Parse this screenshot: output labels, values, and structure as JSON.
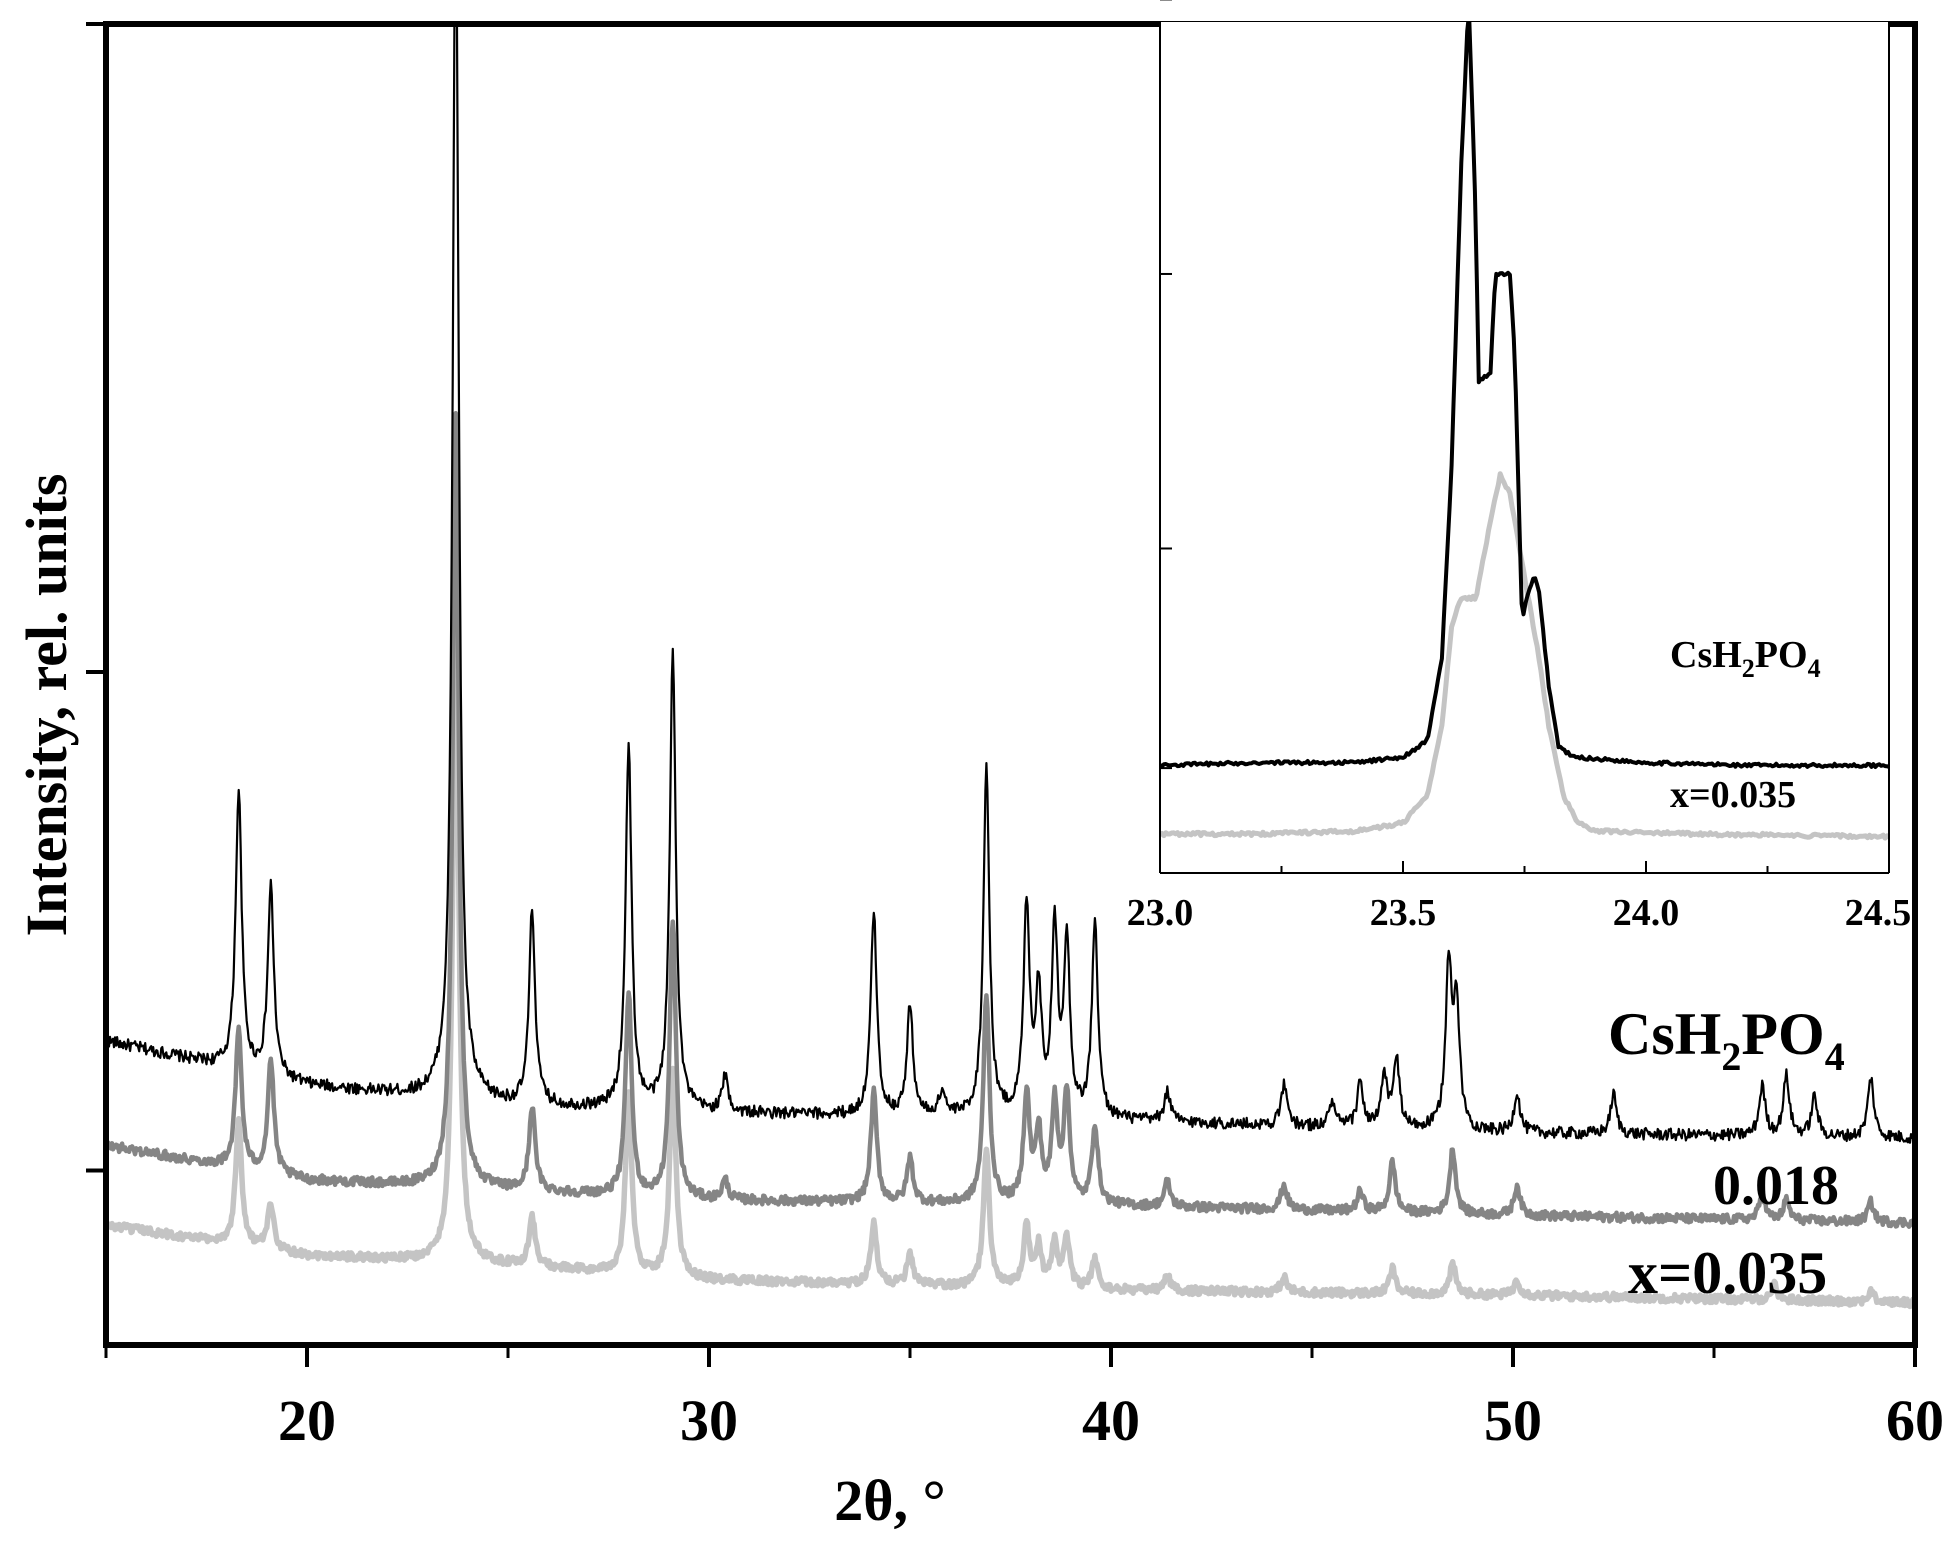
{
  "chart_data": [
    {
      "type": "line",
      "xlabel": "2θ, °",
      "ylabel": "Intensity, rel. units",
      "xlim": [
        15,
        60
      ],
      "ylim": [
        -0.35,
        2.3
      ],
      "x_ticks": [
        20,
        30,
        40,
        50,
        60
      ],
      "grid": false,
      "series_labels": [
        {
          "text": "CsH",
          "sub1": "2",
          "mid": "PO",
          "sub2": "4"
        },
        {
          "text": "0.018"
        },
        {
          "text": "x=0.035"
        }
      ],
      "series": [
        {
          "name": "CsH2PO4",
          "color": "#000000",
          "baseline": [
            [
              15,
              0.26
            ],
            [
              20,
              0.17
            ],
            [
              25,
              0.13
            ],
            [
              30,
              0.115
            ],
            [
              40,
              0.1
            ],
            [
              50,
              0.075
            ],
            [
              60,
              0.065
            ]
          ],
          "peaks": [
            [
              18.3,
              0.56
            ],
            [
              19.1,
              0.38
            ],
            [
              23.7,
              2.45
            ],
            [
              25.6,
              0.39
            ],
            [
              28.0,
              0.73
            ],
            [
              29.1,
              0.92
            ],
            [
              30.4,
              0.07
            ],
            [
              34.1,
              0.41
            ],
            [
              35.0,
              0.22
            ],
            [
              35.8,
              0.05
            ],
            [
              36.9,
              0.7
            ],
            [
              37.9,
              0.42
            ],
            [
              38.2,
              0.24
            ],
            [
              38.6,
              0.37
            ],
            [
              38.9,
              0.35
            ],
            [
              39.6,
              0.39
            ],
            [
              41.4,
              0.06
            ],
            [
              44.3,
              0.08
            ],
            [
              45.5,
              0.05
            ],
            [
              46.2,
              0.09
            ],
            [
              46.8,
              0.1
            ],
            [
              47.1,
              0.14
            ],
            [
              48.4,
              0.33
            ],
            [
              48.6,
              0.24
            ],
            [
              50.1,
              0.08
            ],
            [
              52.5,
              0.08
            ],
            [
              56.2,
              0.1
            ],
            [
              56.8,
              0.12
            ],
            [
              57.5,
              0.08
            ],
            [
              58.9,
              0.12
            ]
          ]
        },
        {
          "name": "0.018",
          "color": "#858585",
          "baseline": [
            [
              15,
              0.05
            ],
            [
              20,
              -0.02
            ],
            [
              25,
              -0.04
            ],
            [
              30,
              -0.06
            ],
            [
              40,
              -0.07
            ],
            [
              50,
              -0.09
            ],
            [
              60,
              -0.105
            ]
          ],
          "peaks": [
            [
              18.3,
              0.28
            ],
            [
              19.1,
              0.23
            ],
            [
              23.7,
              1.55
            ],
            [
              25.6,
              0.17
            ],
            [
              28.0,
              0.41
            ],
            [
              29.1,
              0.56
            ],
            [
              30.4,
              0.04
            ],
            [
              34.1,
              0.22
            ],
            [
              35.0,
              0.09
            ],
            [
              36.9,
              0.42
            ],
            [
              37.9,
              0.22
            ],
            [
              38.2,
              0.14
            ],
            [
              38.6,
              0.2
            ],
            [
              38.9,
              0.22
            ],
            [
              39.6,
              0.16
            ],
            [
              41.4,
              0.05
            ],
            [
              44.3,
              0.05
            ],
            [
              46.2,
              0.04
            ],
            [
              47.0,
              0.1
            ],
            [
              48.5,
              0.13
            ],
            [
              50.1,
              0.06
            ],
            [
              56.2,
              0.05
            ],
            [
              56.8,
              0.04
            ],
            [
              58.9,
              0.04
            ]
          ]
        },
        {
          "name": "x=0.035",
          "color": "#c4c4c4",
          "baseline": [
            [
              15,
              -0.11
            ],
            [
              20,
              -0.17
            ],
            [
              25,
              -0.19
            ],
            [
              30,
              -0.22
            ],
            [
              40,
              -0.24
            ],
            [
              50,
              -0.25
            ],
            [
              60,
              -0.265
            ]
          ],
          "peaks": [
            [
              18.3,
              0.25
            ],
            [
              19.1,
              0.09
            ],
            [
              23.7,
              1.27
            ],
            [
              25.6,
              0.1
            ],
            [
              28.0,
              0.37
            ],
            [
              29.1,
              0.41
            ],
            [
              34.1,
              0.12
            ],
            [
              35.0,
              0.06
            ],
            [
              36.9,
              0.27
            ],
            [
              37.9,
              0.12
            ],
            [
              38.2,
              0.08
            ],
            [
              38.6,
              0.09
            ],
            [
              38.9,
              0.1
            ],
            [
              39.6,
              0.06
            ],
            [
              41.4,
              0.03
            ],
            [
              44.3,
              0.03
            ],
            [
              47.0,
              0.05
            ],
            [
              48.5,
              0.06
            ],
            [
              50.1,
              0.03
            ],
            [
              56.5,
              0.03
            ],
            [
              58.9,
              0.02
            ]
          ]
        }
      ]
    },
    {
      "type": "line",
      "role": "inset",
      "xlim": [
        23.0,
        24.5
      ],
      "ylim": [
        0,
        3.1
      ],
      "x_ticks": [
        "23.0",
        "23.5",
        "24.0",
        "24.5"
      ],
      "grid": false,
      "series_labels": [
        {
          "text": "CsH",
          "sub1": "2",
          "mid": "PO",
          "sub2": "4"
        },
        {
          "text": "x=0.035"
        }
      ],
      "series": [
        {
          "name": "CsH2PO4",
          "color": "#000000",
          "points": [
            [
              23.0,
              0.21
            ],
            [
              23.2,
              0.22
            ],
            [
              23.4,
              0.22
            ],
            [
              23.5,
              0.24
            ],
            [
              23.55,
              0.3
            ],
            [
              23.58,
              0.6
            ],
            [
              23.6,
              1.3
            ],
            [
              23.62,
              2.4
            ],
            [
              23.635,
              3.0
            ],
            [
              23.65,
              2.2
            ],
            [
              23.655,
              1.61
            ],
            [
              23.68,
              1.64
            ],
            [
              23.69,
              2.0
            ],
            [
              23.72,
              2.0
            ],
            [
              23.73,
              1.7
            ],
            [
              23.745,
              0.74
            ],
            [
              23.755,
              0.82
            ],
            [
              23.77,
              0.9
            ],
            [
              23.78,
              0.84
            ],
            [
              23.8,
              0.5
            ],
            [
              23.82,
              0.28
            ],
            [
              23.85,
              0.24
            ],
            [
              24.0,
              0.22
            ],
            [
              24.2,
              0.21
            ],
            [
              24.5,
              0.21
            ]
          ]
        },
        {
          "name": "x=0.035",
          "color": "#c4c4c4",
          "points": [
            [
              23.0,
              -0.04
            ],
            [
              23.2,
              -0.04
            ],
            [
              23.4,
              -0.03
            ],
            [
              23.5,
              0.0
            ],
            [
              23.55,
              0.1
            ],
            [
              23.58,
              0.35
            ],
            [
              23.6,
              0.72
            ],
            [
              23.62,
              0.82
            ],
            [
              23.65,
              0.82
            ],
            [
              23.68,
              1.1
            ],
            [
              23.7,
              1.27
            ],
            [
              23.72,
              1.2
            ],
            [
              23.75,
              0.9
            ],
            [
              23.78,
              0.6
            ],
            [
              23.8,
              0.35
            ],
            [
              23.83,
              0.1
            ],
            [
              23.86,
              0.0
            ],
            [
              23.9,
              -0.03
            ],
            [
              24.1,
              -0.04
            ],
            [
              24.5,
              -0.05
            ]
          ]
        }
      ]
    }
  ]
}
